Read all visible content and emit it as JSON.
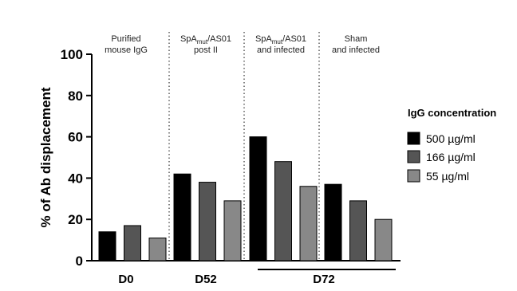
{
  "chart_data": {
    "type": "bar",
    "ylabel": "% of Ab displacement",
    "ylim": [
      0,
      100
    ],
    "yticks": [
      "0",
      "20",
      "40",
      "60",
      "80",
      "100"
    ],
    "legend": {
      "title": "IgG concentration",
      "position": "right"
    },
    "series": [
      {
        "name": "500 µg/ml",
        "color": "#000000"
      },
      {
        "name": "166 µg/ml",
        "color": "#555555"
      },
      {
        "name": "55 µg/ml",
        "color": "#888888"
      }
    ],
    "groups": [
      {
        "label_line1": "Purified",
        "label_line2": "mouse IgG",
        "values": [
          14,
          17,
          11
        ]
      },
      {
        "label_line1": "SpAmut/AS01",
        "label_line2": "post II",
        "values": [
          42,
          38,
          29
        ]
      },
      {
        "label_line1": "SpAmut/AS01",
        "label_line2": "and infected",
        "values": [
          60,
          48,
          36
        ]
      },
      {
        "label_line1": "Sham",
        "label_line2": "and infected",
        "values": [
          37,
          29,
          20
        ]
      }
    ],
    "x_labels": [
      "D0",
      "D52",
      "D72"
    ],
    "grid": false
  }
}
